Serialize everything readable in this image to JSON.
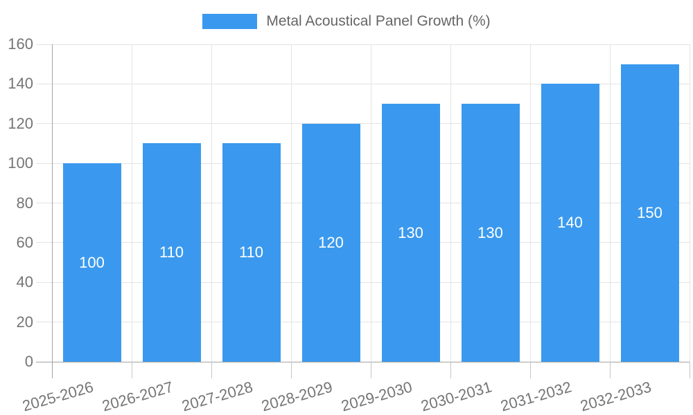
{
  "legend": {
    "label": "Metal Acoustical Panel Growth (%)",
    "swatch_color": "#3a99ee"
  },
  "chart_data": {
    "type": "bar",
    "title": "",
    "xlabel": "",
    "ylabel": "",
    "categories": [
      "2025-2026",
      "2026-2027",
      "2027-2028",
      "2028-2029",
      "2029-2030",
      "2030-2031",
      "2031-2032",
      "2032-2033"
    ],
    "values": [
      100,
      110,
      110,
      120,
      130,
      130,
      140,
      150
    ],
    "series_name": "Metal Acoustical Panel Growth (%)",
    "value_labels_shown": true,
    "ylim": [
      0,
      160
    ],
    "yticks": [
      0,
      20,
      40,
      60,
      80,
      100,
      120,
      140,
      160
    ],
    "grid": true,
    "legend_position": "top",
    "x_label_rotation": -16,
    "bar_color": "#3a99ee",
    "value_label_color": "#ffffff",
    "grid_color": "#e3e3e3",
    "axis_color": "#a3a3a3",
    "outer_tick_color": "#c6c6c6",
    "tick_label_color": "#757575"
  }
}
